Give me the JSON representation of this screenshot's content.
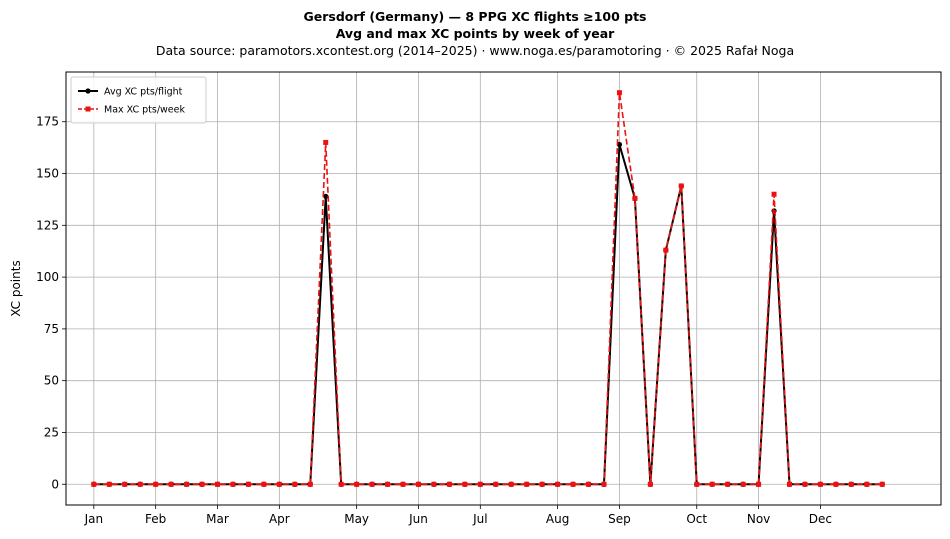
{
  "chart_data": {
    "type": "line",
    "title": "Gersdorf (Germany)  —  8 PPG XC flights ≥100 pts",
    "subtitle": "Avg and max XC points by week of year",
    "source": "Data source: paramotors.xcontest.org (2014–2025)  ·  www.noga.es/paramotoring  ·  © 2025 Rafał Noga",
    "xlabel": "",
    "ylabel": "XC points",
    "xlim": [
      -1.8,
      54.8
    ],
    "ylim": [
      -10,
      199
    ],
    "yticks": [
      0,
      25,
      50,
      75,
      100,
      125,
      150,
      175
    ],
    "xticks": [
      {
        "pos": 0,
        "label": "Jan"
      },
      {
        "pos": 4,
        "label": "Feb"
      },
      {
        "pos": 8,
        "label": "Mar"
      },
      {
        "pos": 12,
        "label": "Apr"
      },
      {
        "pos": 17,
        "label": "May"
      },
      {
        "pos": 21,
        "label": "Jun"
      },
      {
        "pos": 25,
        "label": "Jul"
      },
      {
        "pos": 30,
        "label": "Aug"
      },
      {
        "pos": 34,
        "label": "Sep"
      },
      {
        "pos": 39,
        "label": "Oct"
      },
      {
        "pos": 43,
        "label": "Nov"
      },
      {
        "pos": 47,
        "label": "Dec"
      }
    ],
    "grid": true,
    "legend_position": "top-left",
    "x": [
      0,
      1,
      2,
      3,
      4,
      5,
      6,
      7,
      8,
      9,
      10,
      11,
      12,
      13,
      14,
      15,
      16,
      17,
      18,
      19,
      20,
      21,
      22,
      23,
      24,
      25,
      26,
      27,
      28,
      29,
      30,
      31,
      32,
      33,
      34,
      35,
      36,
      37,
      38,
      39,
      40,
      41,
      42,
      43,
      44,
      45,
      46,
      47,
      48,
      49,
      50,
      51
    ],
    "series": [
      {
        "name": "Avg XC pts/flight",
        "color": "#000000",
        "style": "solid",
        "marker": "circle",
        "values": [
          0,
          0,
          0,
          0,
          0,
          0,
          0,
          0,
          0,
          0,
          0,
          0,
          0,
          0,
          0,
          139,
          0,
          0,
          0,
          0,
          0,
          0,
          0,
          0,
          0,
          0,
          0,
          0,
          0,
          0,
          0,
          0,
          0,
          0,
          164,
          138,
          0,
          113,
          144,
          0,
          0,
          0,
          0,
          0,
          132,
          0,
          0,
          0,
          0,
          0,
          0,
          0
        ]
      },
      {
        "name": "Max XC pts/week",
        "color": "#ee1111",
        "style": "dashed",
        "marker": "square",
        "values": [
          0,
          0,
          0,
          0,
          0,
          0,
          0,
          0,
          0,
          0,
          0,
          0,
          0,
          0,
          0,
          165,
          0,
          0,
          0,
          0,
          0,
          0,
          0,
          0,
          0,
          0,
          0,
          0,
          0,
          0,
          0,
          0,
          0,
          0,
          189,
          138,
          0,
          113,
          144,
          0,
          0,
          0,
          0,
          0,
          140,
          0,
          0,
          0,
          0,
          0,
          0,
          0
        ]
      }
    ]
  }
}
